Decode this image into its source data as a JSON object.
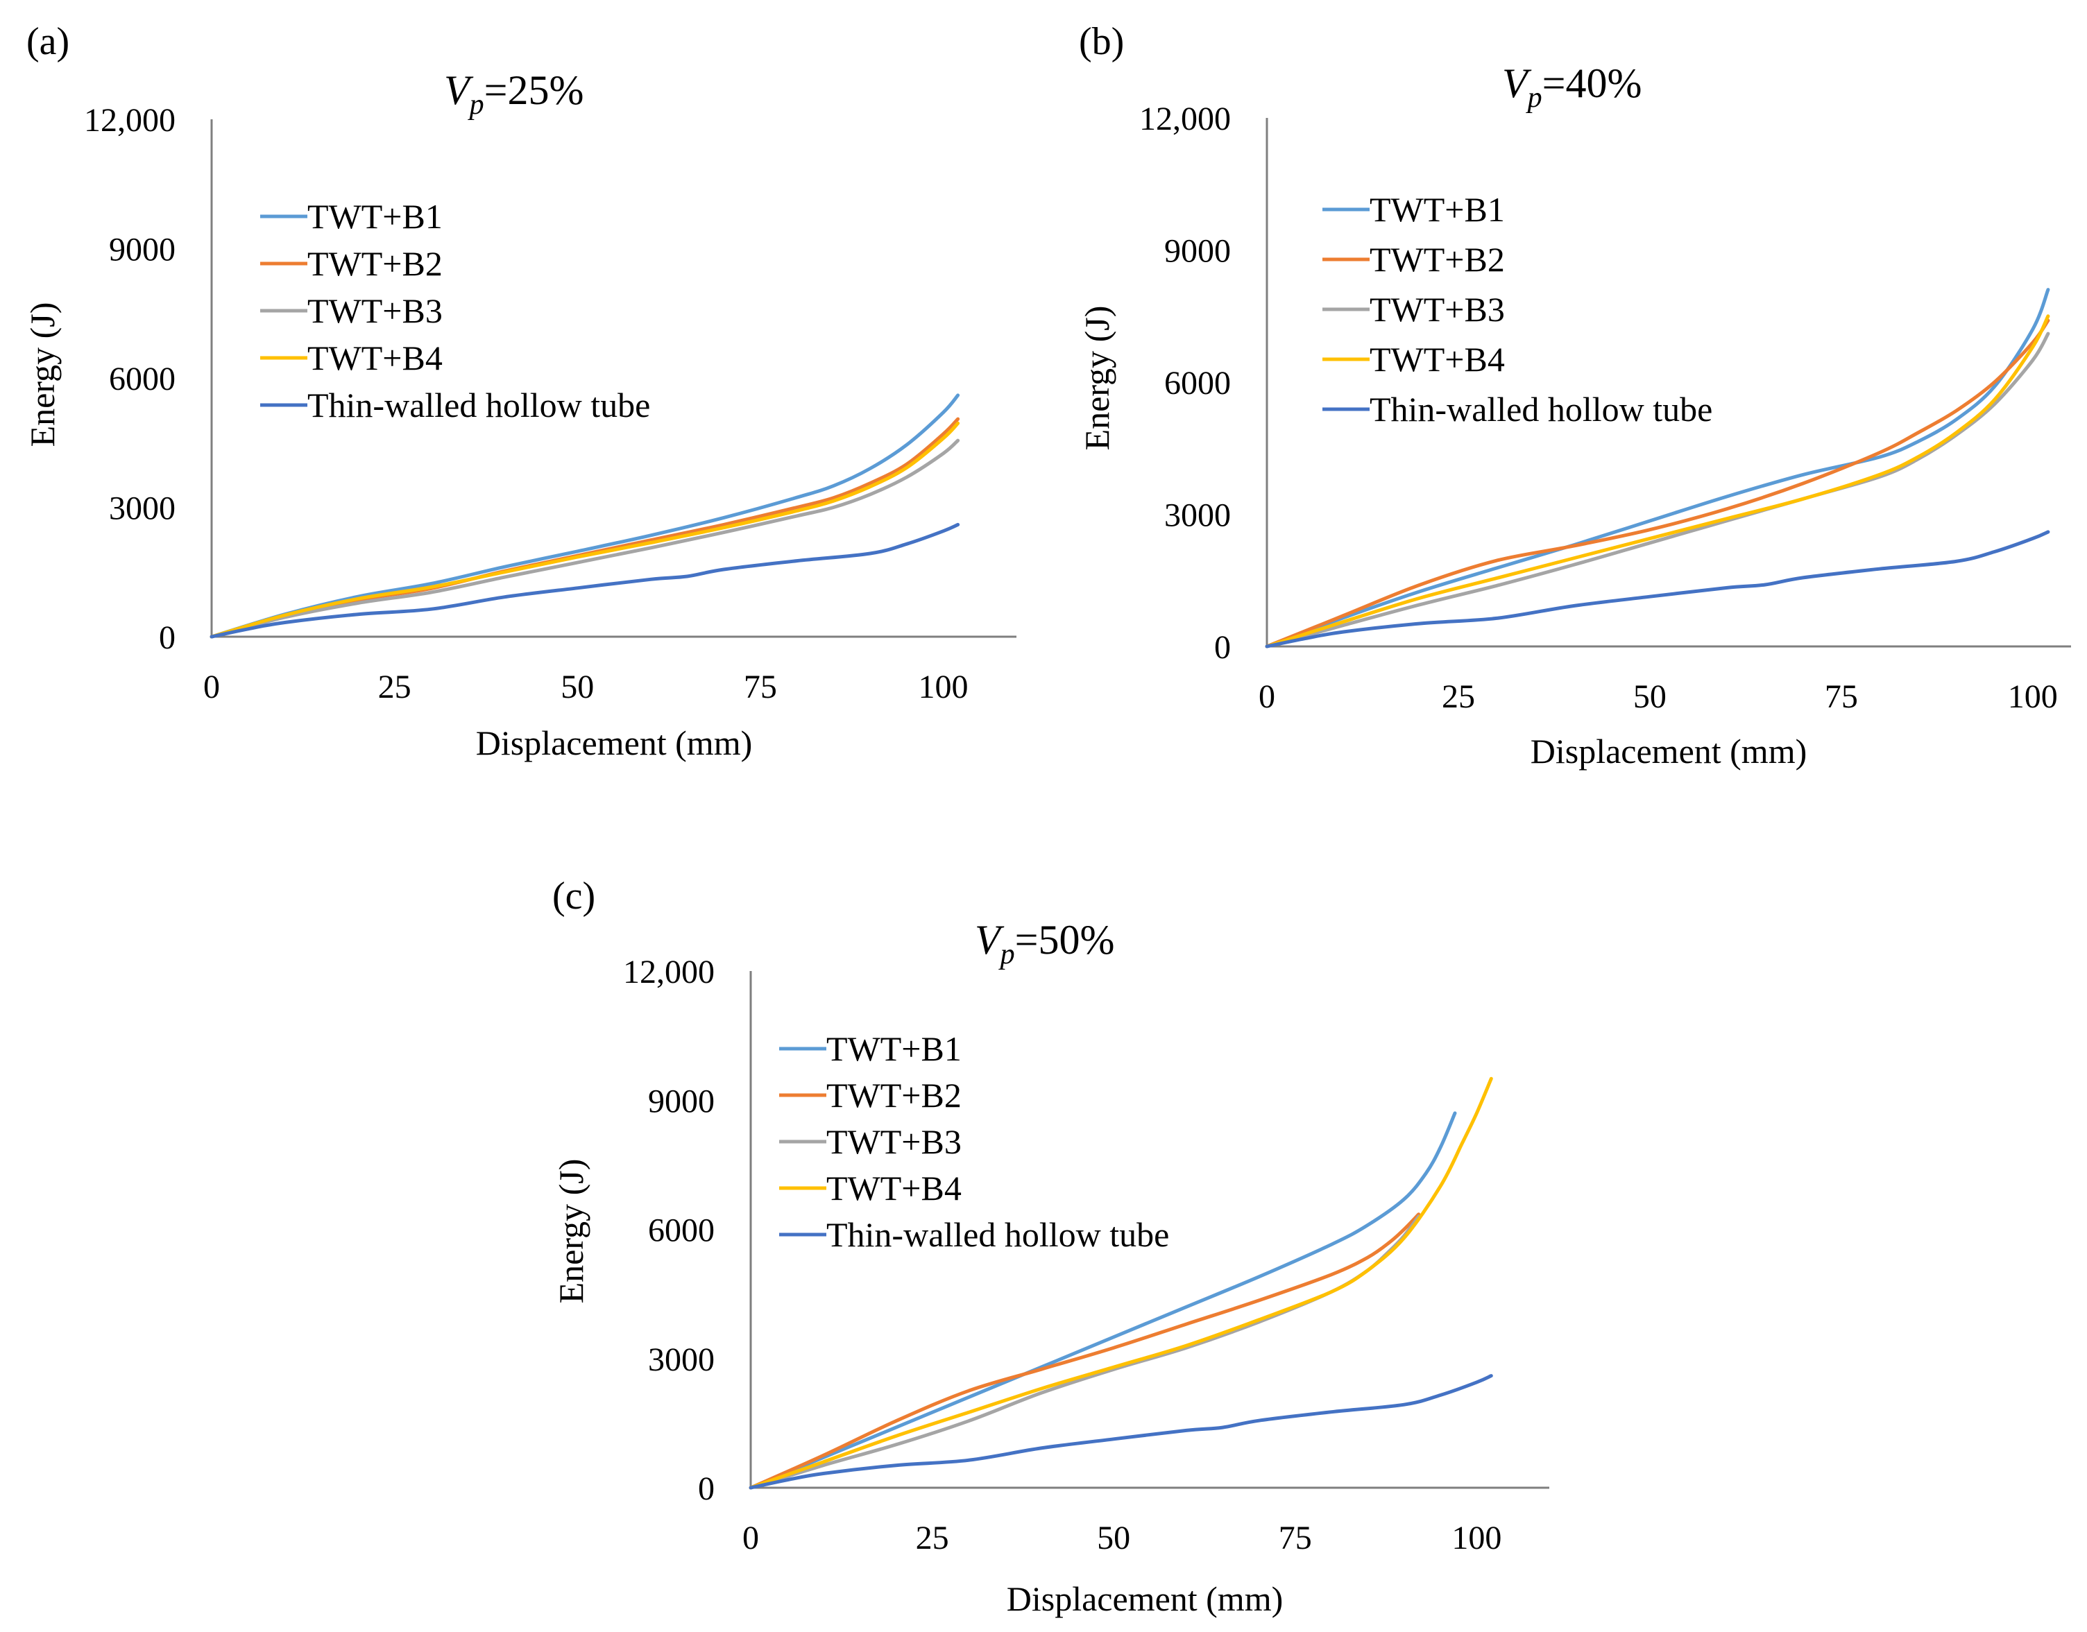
{
  "figure": {
    "series_colors": {
      "TWT+B1": "#5B9BD5",
      "TWT+B2": "#ED7D31",
      "TWT+B3": "#A5A5A5",
      "TWT+B4": "#FFC000",
      "Thin-walled hollow tube": "#4472C4"
    }
  },
  "chart_data": [
    {
      "type": "line",
      "panel_label": "(a)",
      "title_var": "V",
      "title_sub": "p",
      "title_rest": "=25%",
      "xlabel": "Displacement (mm)",
      "ylabel": "Energy (J)",
      "xlim": [
        0,
        110
      ],
      "ylim": [
        0,
        12000
      ],
      "xticks": [
        0,
        25,
        50,
        75,
        100
      ],
      "xtick_labels": [
        "0",
        "25",
        "50",
        "75",
        "100"
      ],
      "yticks": [
        0,
        3000,
        6000,
        9000,
        12000
      ],
      "ytick_labels": [
        "0",
        "3000",
        "6000",
        "9000",
        "12,000"
      ],
      "legend": "upper-left",
      "series": [
        {
          "name": "TWT+B1",
          "color": "#5B9BD5",
          "x": [
            0,
            10,
            20,
            30,
            40,
            50,
            60,
            70,
            80,
            85,
            90,
            95,
            100,
            102
          ],
          "y": [
            0,
            520,
            930,
            1230,
            1620,
            1980,
            2350,
            2760,
            3230,
            3500,
            3900,
            4450,
            5200,
            5600
          ]
        },
        {
          "name": "TWT+B2",
          "color": "#ED7D31",
          "x": [
            0,
            10,
            20,
            30,
            40,
            50,
            60,
            70,
            80,
            85,
            90,
            95,
            100,
            102
          ],
          "y": [
            0,
            480,
            850,
            1120,
            1520,
            1880,
            2240,
            2600,
            3000,
            3220,
            3560,
            4000,
            4700,
            5050
          ]
        },
        {
          "name": "TWT+B3",
          "color": "#A5A5A5",
          "x": [
            0,
            10,
            20,
            30,
            40,
            50,
            60,
            70,
            80,
            85,
            90,
            95,
            100,
            102
          ],
          "y": [
            0,
            450,
            780,
            1030,
            1380,
            1720,
            2060,
            2420,
            2800,
            3000,
            3300,
            3700,
            4250,
            4550
          ]
        },
        {
          "name": "TWT+B4",
          "color": "#FFC000",
          "x": [
            0,
            10,
            20,
            30,
            40,
            50,
            60,
            70,
            80,
            85,
            90,
            95,
            100,
            102
          ],
          "y": [
            0,
            500,
            880,
            1150,
            1500,
            1850,
            2180,
            2530,
            2920,
            3150,
            3480,
            3920,
            4600,
            4950
          ]
        },
        {
          "name": "Thin-walled hollow tube",
          "color": "#4472C4",
          "x": [
            0,
            5,
            10,
            20,
            30,
            40,
            50,
            60,
            65,
            70,
            80,
            90,
            95,
            100,
            102
          ],
          "y": [
            0,
            180,
            330,
            520,
            640,
            920,
            1130,
            1330,
            1400,
            1560,
            1760,
            1930,
            2150,
            2450,
            2600
          ]
        }
      ]
    },
    {
      "type": "line",
      "panel_label": "(b)",
      "title_var": "V",
      "title_sub": "p",
      "title_rest": "=40%",
      "xlabel": "Displacement (mm)",
      "ylabel": "Energy (J)",
      "xlim": [
        0,
        105
      ],
      "ylim": [
        0,
        12000
      ],
      "xticks": [
        0,
        25,
        50,
        75,
        100
      ],
      "xtick_labels": [
        "0",
        "25",
        "50",
        "75",
        "100"
      ],
      "yticks": [
        0,
        3000,
        6000,
        9000,
        12000
      ],
      "ytick_labels": [
        "0",
        "3000",
        "6000",
        "9000",
        "12,000"
      ],
      "legend": "upper-left",
      "series": [
        {
          "name": "TWT+B1",
          "color": "#5B9BD5",
          "x": [
            0,
            10,
            20,
            30,
            40,
            50,
            60,
            70,
            80,
            85,
            90,
            95,
            100,
            102
          ],
          "y": [
            0,
            650,
            1250,
            1780,
            2300,
            2850,
            3400,
            3900,
            4300,
            4650,
            5150,
            5900,
            7200,
            8100
          ]
        },
        {
          "name": "TWT+B2",
          "color": "#ED7D31",
          "x": [
            0,
            10,
            20,
            30,
            40,
            50,
            60,
            70,
            80,
            85,
            90,
            95,
            100,
            102
          ],
          "y": [
            0,
            700,
            1400,
            1950,
            2280,
            2650,
            3120,
            3700,
            4400,
            4850,
            5350,
            6000,
            6900,
            7400
          ]
        },
        {
          "name": "TWT+B3",
          "color": "#A5A5A5",
          "x": [
            0,
            10,
            20,
            30,
            40,
            50,
            60,
            70,
            80,
            85,
            90,
            95,
            100,
            102
          ],
          "y": [
            0,
            480,
            950,
            1380,
            1850,
            2350,
            2850,
            3350,
            3850,
            4250,
            4800,
            5500,
            6500,
            7100
          ]
        },
        {
          "name": "TWT+B4",
          "color": "#FFC000",
          "x": [
            0,
            10,
            20,
            30,
            40,
            50,
            60,
            70,
            80,
            85,
            90,
            95,
            100,
            102
          ],
          "y": [
            0,
            560,
            1100,
            1550,
            2000,
            2450,
            2900,
            3350,
            3900,
            4300,
            4850,
            5600,
            6800,
            7500
          ]
        },
        {
          "name": "Thin-walled hollow tube",
          "color": "#4472C4",
          "x": [
            0,
            5,
            10,
            20,
            30,
            40,
            50,
            60,
            65,
            70,
            80,
            90,
            95,
            100,
            102
          ],
          "y": [
            0,
            180,
            330,
            520,
            640,
            920,
            1130,
            1330,
            1400,
            1560,
            1760,
            1930,
            2150,
            2450,
            2600
          ]
        }
      ]
    },
    {
      "type": "line",
      "panel_label": "(c)",
      "title_var": "V",
      "title_sub": "p",
      "title_rest": "=50%",
      "xlabel": "Displacement (mm)",
      "ylabel": "Energy (J)",
      "xlim": [
        0,
        110
      ],
      "ylim": [
        0,
        12000
      ],
      "xticks": [
        0,
        25,
        50,
        75,
        100
      ],
      "xtick_labels": [
        "0",
        "25",
        "50",
        "75",
        "100"
      ],
      "yticks": [
        0,
        3000,
        6000,
        9000,
        12000
      ],
      "ytick_labels": [
        "0",
        "3000",
        "6000",
        "9000",
        "12,000"
      ],
      "legend": "upper-left",
      "series": [
        {
          "name": "TWT+B1",
          "color": "#5B9BD5",
          "x": [
            0,
            10,
            20,
            30,
            40,
            50,
            60,
            70,
            80,
            85,
            90,
            93,
            95,
            97
          ],
          "y": [
            0,
            700,
            1400,
            2100,
            2800,
            3500,
            4200,
            4900,
            5650,
            6100,
            6700,
            7300,
            7900,
            8700
          ]
        },
        {
          "name": "TWT+B2",
          "color": "#ED7D31",
          "x": [
            0,
            10,
            20,
            30,
            40,
            50,
            60,
            70,
            80,
            85,
            88,
            90,
            92
          ],
          "y": [
            0,
            750,
            1550,
            2250,
            2750,
            3250,
            3800,
            4350,
            4950,
            5350,
            5700,
            6000,
            6350
          ]
        },
        {
          "name": "TWT+B3",
          "color": "#A5A5A5",
          "x": [
            0,
            10,
            20,
            30,
            40,
            50,
            60,
            70,
            80,
            85,
            88,
            90,
            92
          ],
          "y": [
            0,
            520,
            1000,
            1550,
            2200,
            2750,
            3250,
            3850,
            4550,
            5050,
            5500,
            5850,
            6300
          ]
        },
        {
          "name": "TWT+B4",
          "color": "#FFC000",
          "x": [
            0,
            10,
            20,
            30,
            40,
            50,
            60,
            70,
            80,
            85,
            90,
            95,
            98,
            100,
            102
          ],
          "y": [
            0,
            600,
            1200,
            1750,
            2300,
            2800,
            3300,
            3900,
            4550,
            5050,
            5800,
            7000,
            8000,
            8700,
            9500
          ]
        },
        {
          "name": "Thin-walled hollow tube",
          "color": "#4472C4",
          "x": [
            0,
            5,
            10,
            20,
            30,
            40,
            50,
            60,
            65,
            70,
            80,
            90,
            95,
            100,
            102
          ],
          "y": [
            0,
            180,
            330,
            520,
            640,
            920,
            1130,
            1330,
            1400,
            1560,
            1760,
            1930,
            2150,
            2450,
            2600
          ]
        }
      ]
    }
  ]
}
